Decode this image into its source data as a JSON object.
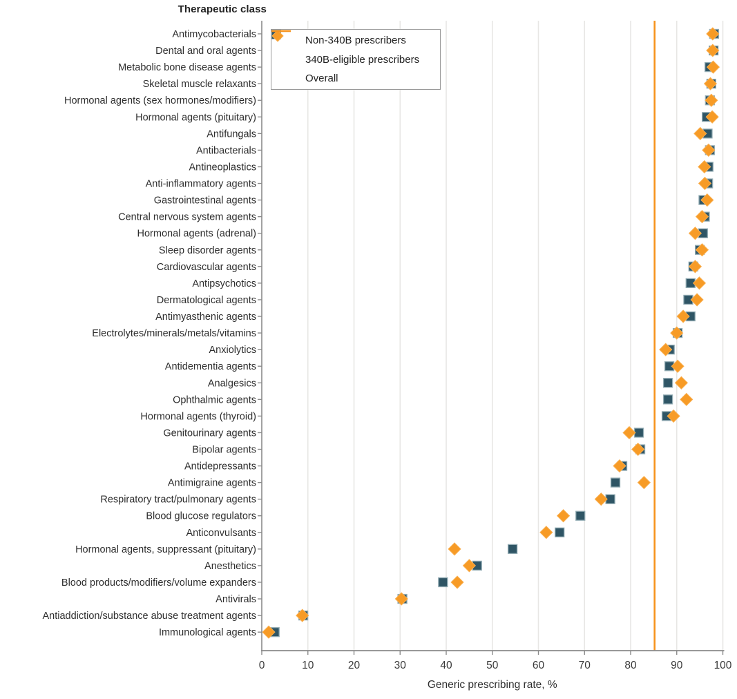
{
  "chart_data": {
    "type": "scatter",
    "title": "Therapeutic class",
    "xlabel": "Generic prescribing rate, %",
    "xlim": [
      0,
      100
    ],
    "xticks": [
      0,
      10,
      20,
      30,
      40,
      50,
      60,
      70,
      80,
      90,
      100
    ],
    "grid": true,
    "legend_position": "top-left-inside",
    "overall_label": "Overall",
    "overall_value": 85.2,
    "categories": [
      "Antimycobacterials",
      "Dental and oral agents",
      "Metabolic bone disease agents",
      "Skeletal muscle relaxants",
      "Hormonal agents (sex hormones/modifiers)",
      "Hormonal agents (pituitary)",
      "Antifungals",
      "Antibacterials",
      "Antineoplastics",
      "Anti-inflammatory agents",
      "Gastrointestinal agents",
      "Central nervous system agents",
      "Hormonal agents (adrenal)",
      "Sleep disorder agents",
      "Cardiovascular agents",
      "Antipsychotics",
      "Dermatological agents",
      "Antimyasthenic agents",
      "Electrolytes/minerals/metals/vitamins",
      "Anxiolytics",
      "Antidementia agents",
      "Analgesics",
      "Ophthalmic agents",
      "Hormonal agents (thyroid)",
      "Genitourinary agents",
      "Bipolar agents",
      "Antidepressants",
      "Antimigraine agents",
      "Respiratory tract/pulmonary agents",
      "Blood glucose regulators",
      "Anticonvulsants",
      "Hormonal agents, suppressant (pituitary)",
      "Anesthetics",
      "Blood products/modifiers/volume expanders",
      "Antivirals",
      "Antiaddiction/substance abuse treatment agents",
      "Immunological agents"
    ],
    "series": [
      {
        "name": "Non-340B prescribers",
        "marker": "square",
        "color": "#2F5565",
        "border": "#93acb4",
        "values": [
          98.1,
          98.0,
          97.1,
          97.5,
          97.2,
          96.5,
          96.7,
          97.2,
          96.9,
          96.8,
          95.8,
          96.1,
          95.7,
          95.0,
          93.6,
          93.0,
          92.5,
          93.0,
          90.2,
          88.5,
          88.4,
          88.1,
          88.1,
          87.8,
          81.8,
          82.1,
          78.2,
          76.7,
          75.6,
          69.1,
          64.6,
          54.4,
          46.7,
          39.3,
          30.5,
          9.0,
          2.8
        ]
      },
      {
        "name": "340B-eligible prescribers",
        "marker": "diamond",
        "color": "#F79B26",
        "border": "#f9ae4e",
        "values": [
          97.8,
          97.8,
          97.9,
          97.3,
          97.5,
          97.7,
          95.1,
          96.9,
          96.0,
          96.1,
          96.6,
          95.5,
          94.0,
          95.5,
          94.0,
          94.9,
          94.4,
          91.4,
          90.0,
          87.6,
          90.2,
          91.0,
          92.1,
          89.3,
          79.7,
          81.6,
          77.6,
          82.9,
          73.6,
          65.4,
          61.7,
          41.8,
          45.0,
          42.4,
          30.3,
          8.8,
          1.5
        ]
      }
    ],
    "colors": {
      "overall_line": "#F6931D",
      "grid": "#e7e6e4",
      "axis": "#8a8a8a",
      "background": "#ffffff"
    }
  }
}
